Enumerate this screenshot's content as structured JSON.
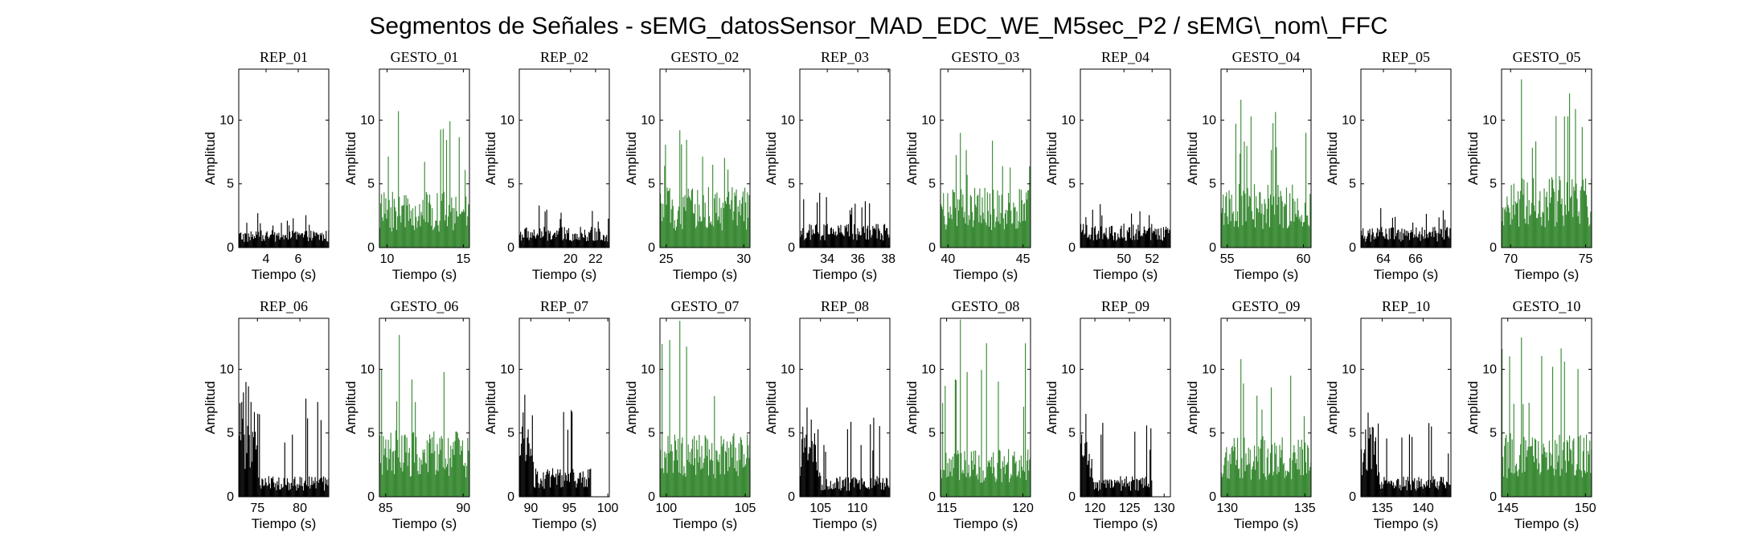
{
  "figure": {
    "title": "Segmentos de Señales - sEMG_datosSensor_MAD_EDC_WE_M5sec_P2 / sEMG\\_nom\\_FFC"
  },
  "colors": {
    "rep": "#000000",
    "gesto": "#3a8a35",
    "axis": "#000000"
  },
  "chart_data": [
    {
      "type": "area",
      "title": "REP_01",
      "xlabel": "Tiempo (s)",
      "ylabel": "Amplitud",
      "xlim": [
        2.3,
        7.9
      ],
      "ylim": [
        0,
        14
      ],
      "xticks": [
        4,
        6
      ],
      "yticks": [
        0,
        5,
        10
      ],
      "x_range": [
        2.3,
        7.9
      ],
      "y_level": 1.1,
      "y_peak": 2.7,
      "series": [
        {
          "name": "REP_01",
          "color": "#000000"
        }
      ]
    },
    {
      "type": "area",
      "title": "GESTO_01",
      "xlabel": "Tiempo (s)",
      "ylabel": "Amplitud",
      "xlim": [
        9.5,
        15.4
      ],
      "ylim": [
        0,
        14
      ],
      "xticks": [
        10,
        15
      ],
      "yticks": [
        0,
        5,
        10
      ],
      "x_range": [
        9.5,
        15.4
      ],
      "y_level": 3.5,
      "y_peak": 10.7,
      "series": [
        {
          "name": "GESTO_01",
          "color": "#3a8a35"
        }
      ]
    },
    {
      "type": "area",
      "title": "REP_02",
      "xlabel": "Tiempo (s)",
      "ylabel": "Amplitud",
      "xlim": [
        15.9,
        23.1
      ],
      "ylim": [
        0,
        14
      ],
      "xticks": [
        20,
        22
      ],
      "yticks": [
        0,
        5,
        10
      ],
      "x_range": [
        15.9,
        23.1
      ],
      "y_level": 1.3,
      "y_peak": 3.3,
      "series": [
        {
          "name": "REP_02",
          "color": "#000000"
        }
      ]
    },
    {
      "type": "area",
      "title": "GESTO_02",
      "xlabel": "Tiempo (s)",
      "ylabel": "Amplitud",
      "xlim": [
        24.6,
        30.4
      ],
      "ylim": [
        0,
        14
      ],
      "xticks": [
        25,
        30
      ],
      "yticks": [
        0,
        5,
        10
      ],
      "x_range": [
        24.6,
        30.4
      ],
      "y_level": 3.8,
      "y_peak": 9.2,
      "series": [
        {
          "name": "GESTO_02",
          "color": "#3a8a35"
        }
      ]
    },
    {
      "type": "area",
      "title": "REP_03",
      "xlabel": "Tiempo (s)",
      "ylabel": "Amplitud",
      "xlim": [
        32.2,
        38.1
      ],
      "ylim": [
        0,
        14
      ],
      "xticks": [
        34,
        36,
        38
      ],
      "yticks": [
        0,
        5,
        10
      ],
      "x_range": [
        32.2,
        38.1
      ],
      "y_level": 1.5,
      "y_peak": 4.3,
      "series": [
        {
          "name": "REP_03",
          "color": "#000000"
        }
      ]
    },
    {
      "type": "area",
      "title": "GESTO_03",
      "xlabel": "Tiempo (s)",
      "ylabel": "Amplitud",
      "xlim": [
        39.5,
        45.5
      ],
      "ylim": [
        0,
        14
      ],
      "xticks": [
        40,
        45
      ],
      "yticks": [
        0,
        5,
        10
      ],
      "x_range": [
        39.5,
        45.5
      ],
      "y_level": 3.8,
      "y_peak": 9.0,
      "series": [
        {
          "name": "GESTO_03",
          "color": "#3a8a35"
        }
      ]
    },
    {
      "type": "area",
      "title": "REP_04",
      "xlabel": "Tiempo (s)",
      "ylabel": "Amplitud",
      "xlim": [
        46.9,
        53.3
      ],
      "ylim": [
        0,
        14
      ],
      "xticks": [
        50,
        52
      ],
      "yticks": [
        0,
        5,
        10
      ],
      "x_range": [
        46.9,
        53.3
      ],
      "y_level": 1.5,
      "y_peak": 3.4,
      "series": [
        {
          "name": "REP_04",
          "color": "#000000"
        }
      ]
    },
    {
      "type": "area",
      "title": "GESTO_04",
      "xlabel": "Tiempo (s)",
      "ylabel": "Amplitud",
      "xlim": [
        54.6,
        60.5
      ],
      "ylim": [
        0,
        14
      ],
      "xticks": [
        55,
        60
      ],
      "yticks": [
        0,
        5,
        10
      ],
      "x_range": [
        54.6,
        60.5
      ],
      "y_level": 4.0,
      "y_peak": 11.6,
      "series": [
        {
          "name": "GESTO_04",
          "color": "#3a8a35"
        }
      ]
    },
    {
      "type": "area",
      "title": "REP_05",
      "xlabel": "Tiempo (s)",
      "ylabel": "Amplitud",
      "xlim": [
        62.6,
        68.2
      ],
      "ylim": [
        0,
        14
      ],
      "xticks": [
        64,
        66
      ],
      "yticks": [
        0,
        5,
        10
      ],
      "x_range": [
        62.6,
        68.2
      ],
      "y_level": 1.3,
      "y_peak": 3.1,
      "series": [
        {
          "name": "REP_05",
          "color": "#000000"
        }
      ]
    },
    {
      "type": "area",
      "title": "GESTO_05",
      "xlabel": "Tiempo (s)",
      "ylabel": "Amplitud",
      "xlim": [
        69.4,
        75.4
      ],
      "ylim": [
        0,
        14
      ],
      "xticks": [
        70,
        75
      ],
      "yticks": [
        0,
        5,
        10
      ],
      "x_range": [
        69.4,
        75.4
      ],
      "y_level": 4.5,
      "y_peak": 13.2,
      "series": [
        {
          "name": "GESTO_05",
          "color": "#3a8a35"
        }
      ]
    },
    {
      "type": "area",
      "title": "REP_06",
      "xlabel": "Tiempo (s)",
      "ylabel": "Amplitud",
      "xlim": [
        72.8,
        83.4
      ],
      "ylim": [
        0,
        14
      ],
      "xticks": [
        75,
        80
      ],
      "yticks": [
        0,
        5,
        10
      ],
      "x_range": [
        72.8,
        83.4
      ],
      "y_level": 1.3,
      "y_peak": 9.0,
      "burst": {
        "x_end": 75.0,
        "level": 6.0
      },
      "series": [
        {
          "name": "REP_06",
          "color": "#000000"
        }
      ]
    },
    {
      "type": "area",
      "title": "GESTO_06",
      "xlabel": "Tiempo (s)",
      "ylabel": "Amplitud",
      "xlim": [
        84.6,
        90.4
      ],
      "ylim": [
        0,
        14
      ],
      "xticks": [
        85,
        90
      ],
      "yticks": [
        0,
        5,
        10
      ],
      "x_range": [
        84.6,
        90.4
      ],
      "y_level": 4.2,
      "y_peak": 12.7,
      "series": [
        {
          "name": "GESTO_06",
          "color": "#3a8a35"
        }
      ]
    },
    {
      "type": "area",
      "title": "REP_07",
      "xlabel": "Tiempo (s)",
      "ylabel": "Amplitud",
      "xlim": [
        88.5,
        100.2
      ],
      "ylim": [
        0,
        14
      ],
      "xticks": [
        90,
        95,
        100
      ],
      "yticks": [
        0,
        5,
        10
      ],
      "x_range": [
        88.5,
        97.8
      ],
      "y_level": 1.8,
      "y_peak": 8.0,
      "burst": {
        "x_end": 90.3,
        "level": 5.5
      },
      "series": [
        {
          "name": "REP_07",
          "color": "#000000"
        }
      ]
    },
    {
      "type": "area",
      "title": "GESTO_07",
      "xlabel": "Tiempo (s)",
      "ylabel": "Amplitud",
      "xlim": [
        99.6,
        105.3
      ],
      "ylim": [
        0,
        14
      ],
      "xticks": [
        100,
        105
      ],
      "yticks": [
        0,
        5,
        10
      ],
      "x_range": [
        99.6,
        105.3
      ],
      "y_level": 4.0,
      "y_peak": 13.8,
      "series": [
        {
          "name": "GESTO_07",
          "color": "#3a8a35"
        }
      ]
    },
    {
      "type": "area",
      "title": "REP_08",
      "xlabel": "Tiempo (s)",
      "ylabel": "Amplitud",
      "xlim": [
        102.2,
        114.4
      ],
      "ylim": [
        0,
        14
      ],
      "xticks": [
        105,
        110
      ],
      "yticks": [
        0,
        5,
        10
      ],
      "x_range": [
        102.2,
        114.4
      ],
      "y_level": 1.3,
      "y_peak": 7.0,
      "burst": {
        "x_end": 105.0,
        "level": 4.5
      },
      "series": [
        {
          "name": "REP_08",
          "color": "#000000"
        }
      ]
    },
    {
      "type": "area",
      "title": "GESTO_08",
      "xlabel": "Tiempo (s)",
      "ylabel": "Amplitud",
      "xlim": [
        114.6,
        120.5
      ],
      "ylim": [
        0,
        14
      ],
      "xticks": [
        115,
        120
      ],
      "yticks": [
        0,
        5,
        10
      ],
      "x_range": [
        114.6,
        120.5
      ],
      "y_level": 3.0,
      "y_peak": 13.9,
      "series": [
        {
          "name": "GESTO_08",
          "color": "#3a8a35"
        }
      ]
    },
    {
      "type": "area",
      "title": "REP_09",
      "xlabel": "Tiempo (s)",
      "ylabel": "Amplitud",
      "xlim": [
        117.9,
        130.9
      ],
      "ylim": [
        0,
        14
      ],
      "xticks": [
        120,
        125,
        130
      ],
      "yticks": [
        0,
        5,
        10
      ],
      "x_range": [
        117.9,
        128.2
      ],
      "y_level": 1.3,
      "y_peak": 6.5,
      "burst": {
        "x_end": 119.5,
        "level": 4.0
      },
      "series": [
        {
          "name": "REP_09",
          "color": "#000000"
        }
      ]
    },
    {
      "type": "area",
      "title": "GESTO_09",
      "xlabel": "Tiempo (s)",
      "ylabel": "Amplitud",
      "xlim": [
        129.6,
        135.4
      ],
      "ylim": [
        0,
        14
      ],
      "xticks": [
        130,
        135
      ],
      "yticks": [
        0,
        5,
        10
      ],
      "x_range": [
        129.6,
        135.4
      ],
      "y_level": 3.8,
      "y_peak": 10.8,
      "series": [
        {
          "name": "GESTO_09",
          "color": "#3a8a35"
        }
      ]
    },
    {
      "type": "area",
      "title": "REP_10",
      "xlabel": "Tiempo (s)",
      "ylabel": "Amplitud",
      "xlim": [
        132.4,
        143.4
      ],
      "ylim": [
        0,
        14
      ],
      "xticks": [
        135,
        140
      ],
      "yticks": [
        0,
        5,
        10
      ],
      "x_range": [
        132.4,
        143.4
      ],
      "y_level": 1.3,
      "y_peak": 6.6,
      "burst": {
        "x_end": 134.6,
        "level": 4.5
      },
      "series": [
        {
          "name": "REP_10",
          "color": "#000000"
        }
      ]
    },
    {
      "type": "area",
      "title": "GESTO_10",
      "xlabel": "Tiempo (s)",
      "ylabel": "Amplitud",
      "xlim": [
        144.6,
        150.4
      ],
      "ylim": [
        0,
        14
      ],
      "xticks": [
        145,
        150
      ],
      "yticks": [
        0,
        5,
        10
      ],
      "x_range": [
        144.6,
        150.4
      ],
      "y_level": 4.0,
      "y_peak": 12.5,
      "series": [
        {
          "name": "GESTO_10",
          "color": "#3a8a35"
        }
      ]
    }
  ]
}
